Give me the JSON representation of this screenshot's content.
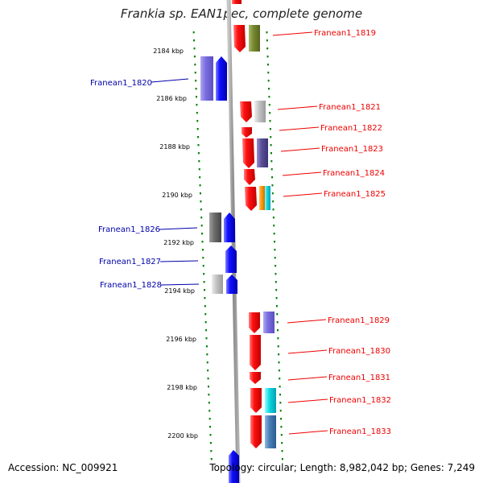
{
  "title": "Frankia sp. EAN1pec, complete genome",
  "footer": {
    "accession": "Accession: NC_009921",
    "topology": "Topology: circular; Length: 8,982,042 bp; Genes: 7,249"
  },
  "colors": {
    "forward_strand": "#ee0000",
    "reverse_strand": "#0000ee",
    "backbone": "#999999",
    "scale_ticks": "#008000"
  },
  "scale_labels": [
    "2184 kbp",
    "2186 kbp",
    "2188 kbp",
    "2190 kbp",
    "2192 kbp",
    "2194 kbp",
    "2196 kbp",
    "2198 kbp",
    "2200 kbp"
  ],
  "genes": [
    {
      "id": "Franean1_1819",
      "strand": "forward",
      "color": "#ee0000"
    },
    {
      "id": "Franean1_1820",
      "strand": "reverse",
      "color": "#0000ee"
    },
    {
      "id": "Franean1_1821",
      "strand": "forward",
      "color": "#ee0000"
    },
    {
      "id": "Franean1_1822",
      "strand": "forward",
      "color": "#ee0000"
    },
    {
      "id": "Franean1_1823",
      "strand": "forward",
      "color": "#ee0000"
    },
    {
      "id": "Franean1_1824",
      "strand": "forward",
      "color": "#ee0000"
    },
    {
      "id": "Franean1_1825",
      "strand": "forward",
      "color": "#ee0000"
    },
    {
      "id": "Franean1_1826",
      "strand": "reverse",
      "color": "#0000ee"
    },
    {
      "id": "Franean1_1827",
      "strand": "reverse",
      "color": "#0000ee"
    },
    {
      "id": "Franean1_1828",
      "strand": "reverse",
      "color": "#0000ee"
    },
    {
      "id": "Franean1_1829",
      "strand": "forward",
      "color": "#ee0000"
    },
    {
      "id": "Franean1_1830",
      "strand": "forward",
      "color": "#ee0000"
    },
    {
      "id": "Franean1_1831",
      "strand": "forward",
      "color": "#ee0000"
    },
    {
      "id": "Franean1_1832",
      "strand": "forward",
      "color": "#ee0000"
    },
    {
      "id": "Franean1_1833",
      "strand": "forward",
      "color": "#ee0000"
    }
  ]
}
